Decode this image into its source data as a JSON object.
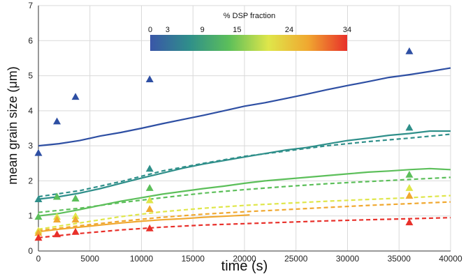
{
  "chart_data": {
    "type": "line",
    "xlabel": "time (s)",
    "ylabel": "mean grain size (μm)",
    "xlim": [
      0,
      40000
    ],
    "ylim": [
      0,
      7
    ],
    "xticks": [
      "0",
      "5000",
      "10000",
      "15000",
      "20000",
      "25000",
      "30000",
      "35000",
      "40000"
    ],
    "yticks": [
      "0",
      "1",
      "2",
      "3",
      "4",
      "5",
      "6",
      "7"
    ],
    "colorbar": {
      "title": "% DSP fraction",
      "tick_labels": [
        "0",
        "3",
        "9",
        "15",
        "24",
        "34"
      ],
      "tick_values": [
        0,
        3,
        9,
        15,
        24,
        34
      ],
      "range": [
        0,
        34
      ],
      "stops": [
        "#3a56a8",
        "#2f8f8a",
        "#5cbf5a",
        "#dfe64a",
        "#f0a830",
        "#e8302a"
      ]
    },
    "series": [
      {
        "color": "#2e4fa3",
        "solid": [
          [
            0,
            3.0
          ],
          [
            2000,
            3.06
          ],
          [
            4000,
            3.15
          ],
          [
            6000,
            3.28
          ],
          [
            8000,
            3.38
          ],
          [
            10000,
            3.5
          ],
          [
            12000,
            3.63
          ],
          [
            14000,
            3.75
          ],
          [
            16000,
            3.87
          ],
          [
            18000,
            4.0
          ],
          [
            20000,
            4.13
          ],
          [
            22000,
            4.23
          ],
          [
            24000,
            4.35
          ],
          [
            26000,
            4.47
          ],
          [
            28000,
            4.6
          ],
          [
            30000,
            4.72
          ],
          [
            32000,
            4.83
          ],
          [
            34000,
            4.95
          ],
          [
            36000,
            5.03
          ],
          [
            38000,
            5.12
          ],
          [
            40000,
            5.22
          ]
        ],
        "dashed": [],
        "markers": [
          [
            0,
            2.8
          ],
          [
            1800,
            3.7
          ],
          [
            3600,
            4.4
          ],
          [
            10800,
            4.9
          ],
          [
            36000,
            5.7
          ]
        ]
      },
      {
        "color": "#2f8f8a",
        "solid": [
          [
            0,
            1.48
          ],
          [
            2000,
            1.55
          ],
          [
            4000,
            1.65
          ],
          [
            6000,
            1.78
          ],
          [
            8000,
            1.93
          ],
          [
            10000,
            2.08
          ],
          [
            12000,
            2.22
          ],
          [
            14000,
            2.36
          ],
          [
            16000,
            2.48
          ],
          [
            18000,
            2.58
          ],
          [
            20000,
            2.68
          ],
          [
            22000,
            2.78
          ],
          [
            24000,
            2.88
          ],
          [
            26000,
            2.95
          ],
          [
            28000,
            3.05
          ],
          [
            30000,
            3.15
          ],
          [
            32000,
            3.22
          ],
          [
            34000,
            3.3
          ],
          [
            36000,
            3.35
          ],
          [
            38000,
            3.42
          ],
          [
            40000,
            3.42
          ]
        ],
        "dashed": [
          [
            0,
            1.55
          ],
          [
            4000,
            1.72
          ],
          [
            8000,
            1.98
          ],
          [
            12000,
            2.28
          ],
          [
            16000,
            2.5
          ],
          [
            20000,
            2.7
          ],
          [
            24000,
            2.85
          ],
          [
            28000,
            3.0
          ],
          [
            32000,
            3.12
          ],
          [
            36000,
            3.22
          ],
          [
            40000,
            3.33
          ]
        ],
        "markers": [
          [
            0,
            1.48
          ],
          [
            1800,
            1.55
          ],
          [
            3600,
            1.5
          ],
          [
            10800,
            2.35
          ],
          [
            36000,
            3.52
          ]
        ]
      },
      {
        "color": "#5cbf5a",
        "solid": [
          [
            0,
            1.0
          ],
          [
            2000,
            1.07
          ],
          [
            4000,
            1.18
          ],
          [
            6000,
            1.3
          ],
          [
            8000,
            1.42
          ],
          [
            10000,
            1.52
          ],
          [
            12000,
            1.62
          ],
          [
            14000,
            1.7
          ],
          [
            16000,
            1.78
          ],
          [
            18000,
            1.85
          ],
          [
            20000,
            1.93
          ],
          [
            22000,
            2.0
          ],
          [
            24000,
            2.05
          ],
          [
            26000,
            2.1
          ],
          [
            28000,
            2.15
          ],
          [
            30000,
            2.2
          ],
          [
            32000,
            2.25
          ],
          [
            34000,
            2.28
          ],
          [
            36000,
            2.32
          ],
          [
            38000,
            2.35
          ],
          [
            40000,
            2.32
          ]
        ],
        "dashed": [
          [
            0,
            1.1
          ],
          [
            4000,
            1.22
          ],
          [
            8000,
            1.38
          ],
          [
            12000,
            1.52
          ],
          [
            16000,
            1.65
          ],
          [
            20000,
            1.75
          ],
          [
            24000,
            1.84
          ],
          [
            28000,
            1.92
          ],
          [
            32000,
            1.98
          ],
          [
            36000,
            2.04
          ],
          [
            40000,
            2.1
          ]
        ],
        "markers": [
          [
            0,
            0.98
          ],
          [
            1800,
            1.55
          ],
          [
            3600,
            1.5
          ],
          [
            10800,
            1.8
          ],
          [
            36000,
            2.18
          ]
        ]
      },
      {
        "color": "#dfe64a",
        "solid": [],
        "dashed": [
          [
            0,
            0.62
          ],
          [
            4000,
            0.8
          ],
          [
            8000,
            0.98
          ],
          [
            12000,
            1.12
          ],
          [
            16000,
            1.22
          ],
          [
            20000,
            1.3
          ],
          [
            24000,
            1.36
          ],
          [
            28000,
            1.42
          ],
          [
            32000,
            1.47
          ],
          [
            36000,
            1.52
          ],
          [
            40000,
            1.58
          ]
        ],
        "markers": [
          [
            0,
            0.58
          ],
          [
            1800,
            0.98
          ],
          [
            3600,
            1.0
          ],
          [
            10800,
            1.45
          ],
          [
            36000,
            1.8
          ]
        ]
      },
      {
        "color": "#f0a830",
        "solid": [
          [
            0,
            0.55
          ],
          [
            2000,
            0.62
          ],
          [
            4000,
            0.68
          ],
          [
            6000,
            0.74
          ],
          [
            8000,
            0.8
          ],
          [
            10000,
            0.85
          ],
          [
            12000,
            0.89
          ],
          [
            14000,
            0.92
          ],
          [
            16000,
            0.96
          ],
          [
            18000,
            0.99
          ],
          [
            20000,
            1.02
          ],
          [
            20500,
            1.03
          ]
        ],
        "dashed": [
          [
            0,
            0.58
          ],
          [
            4000,
            0.72
          ],
          [
            8000,
            0.85
          ],
          [
            12000,
            0.96
          ],
          [
            16000,
            1.05
          ],
          [
            20000,
            1.12
          ],
          [
            24000,
            1.18
          ],
          [
            28000,
            1.24
          ],
          [
            32000,
            1.3
          ],
          [
            36000,
            1.35
          ],
          [
            40000,
            1.4
          ]
        ],
        "markers": [
          [
            0,
            0.52
          ],
          [
            1800,
            0.9
          ],
          [
            3600,
            0.9
          ],
          [
            10800,
            1.2
          ],
          [
            36000,
            1.58
          ]
        ]
      },
      {
        "color": "#e8302a",
        "solid": [],
        "dashed": [
          [
            0,
            0.38
          ],
          [
            4000,
            0.5
          ],
          [
            8000,
            0.6
          ],
          [
            12000,
            0.68
          ],
          [
            16000,
            0.74
          ],
          [
            20000,
            0.78
          ],
          [
            24000,
            0.82
          ],
          [
            28000,
            0.86
          ],
          [
            32000,
            0.89
          ],
          [
            36000,
            0.92
          ],
          [
            40000,
            0.95
          ]
        ],
        "markers": [
          [
            0,
            0.38
          ],
          [
            1800,
            0.48
          ],
          [
            3600,
            0.55
          ],
          [
            10800,
            0.65
          ],
          [
            36000,
            0.82
          ]
        ]
      }
    ]
  }
}
